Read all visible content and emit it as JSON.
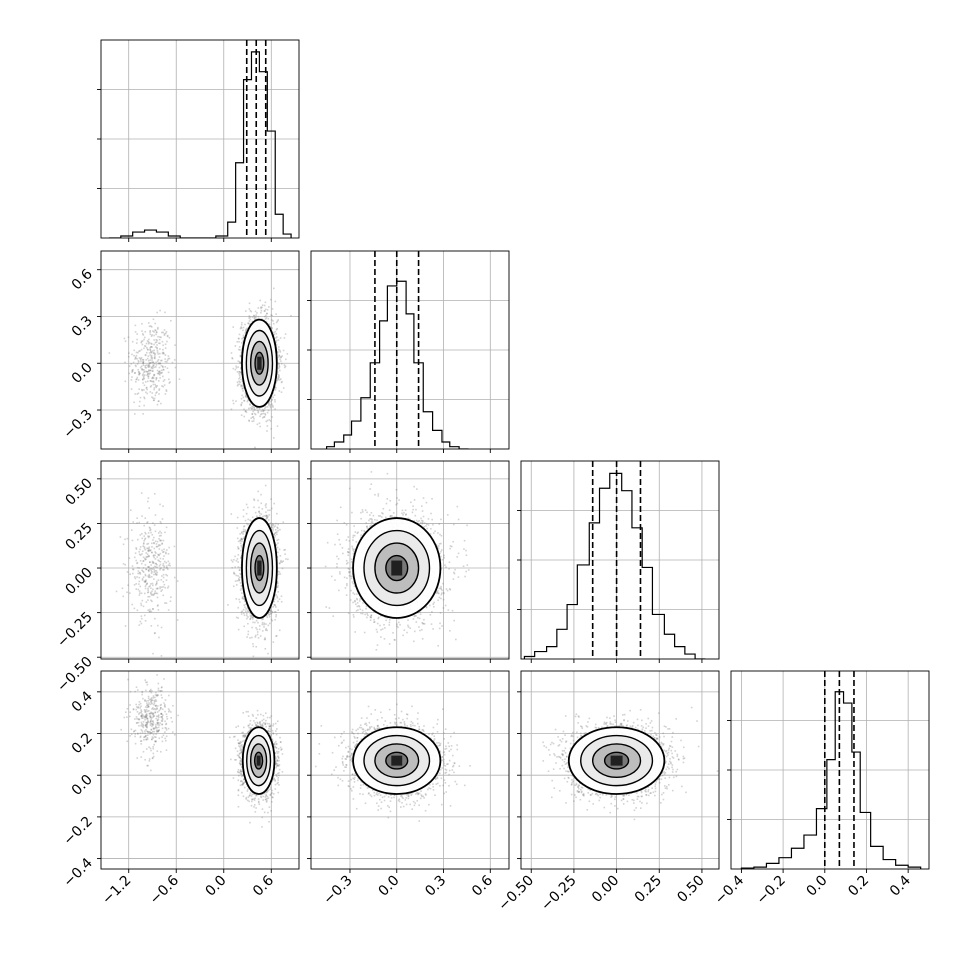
{
  "chart_data": [
    {
      "type": "histogram",
      "panel": "p0-hist",
      "xlim": [
        -1.55,
        0.95
      ],
      "bins": [
        {
          "x0": -1.45,
          "x1": -1.3,
          "count": 0
        },
        {
          "x0": -1.3,
          "x1": -1.15,
          "count": 1
        },
        {
          "x0": -1.15,
          "x1": -1.0,
          "count": 3
        },
        {
          "x0": -1.0,
          "x1": -0.85,
          "count": 4
        },
        {
          "x0": -0.85,
          "x1": -0.7,
          "count": 3
        },
        {
          "x0": -0.7,
          "x1": -0.55,
          "count": 1
        },
        {
          "x0": -0.55,
          "x1": -0.1,
          "count": 0
        },
        {
          "x0": -0.1,
          "x1": 0.05,
          "count": 1
        },
        {
          "x0": 0.05,
          "x1": 0.15,
          "count": 8
        },
        {
          "x0": 0.15,
          "x1": 0.25,
          "count": 38
        },
        {
          "x0": 0.25,
          "x1": 0.35,
          "count": 80
        },
        {
          "x0": 0.35,
          "x1": 0.45,
          "count": 94
        },
        {
          "x0": 0.45,
          "x1": 0.55,
          "count": 84
        },
        {
          "x0": 0.55,
          "x1": 0.65,
          "count": 54
        },
        {
          "x0": 0.65,
          "x1": 0.75,
          "count": 12
        },
        {
          "x0": 0.75,
          "x1": 0.85,
          "count": 2
        }
      ],
      "ymax": 100,
      "quantiles": [
        0.29,
        0.41,
        0.53
      ]
    },
    {
      "type": "histogram",
      "panel": "p1-hist",
      "xlim": [
        -0.55,
        0.72
      ],
      "bins": [
        {
          "x0": -0.45,
          "x1": -0.4,
          "count": 1
        },
        {
          "x0": -0.4,
          "x1": -0.34,
          "count": 3
        },
        {
          "x0": -0.34,
          "x1": -0.29,
          "count": 6
        },
        {
          "x0": -0.29,
          "x1": -0.23,
          "count": 12
        },
        {
          "x0": -0.23,
          "x1": -0.17,
          "count": 22
        },
        {
          "x0": -0.17,
          "x1": -0.11,
          "count": 37
        },
        {
          "x0": -0.11,
          "x1": -0.06,
          "count": 55
        },
        {
          "x0": -0.06,
          "x1": 0.0,
          "count": 70
        },
        {
          "x0": 0.0,
          "x1": 0.06,
          "count": 72
        },
        {
          "x0": 0.06,
          "x1": 0.11,
          "count": 58
        },
        {
          "x0": 0.11,
          "x1": 0.17,
          "count": 37
        },
        {
          "x0": 0.17,
          "x1": 0.23,
          "count": 16
        },
        {
          "x0": 0.23,
          "x1": 0.29,
          "count": 8
        },
        {
          "x0": 0.29,
          "x1": 0.34,
          "count": 3
        },
        {
          "x0": 0.34,
          "x1": 0.4,
          "count": 1
        },
        {
          "x0": 0.4,
          "x1": 0.46,
          "count": 0
        }
      ],
      "ymax": 85,
      "quantiles": [
        -0.14,
        0.0,
        0.14
      ]
    },
    {
      "type": "histogram",
      "panel": "p2-hist",
      "xlim": [
        -0.56,
        0.6
      ],
      "bins": [
        {
          "x0": -0.54,
          "x1": -0.48,
          "count": 1
        },
        {
          "x0": -0.48,
          "x1": -0.41,
          "count": 3
        },
        {
          "x0": -0.41,
          "x1": -0.35,
          "count": 5
        },
        {
          "x0": -0.35,
          "x1": -0.29,
          "count": 12
        },
        {
          "x0": -0.29,
          "x1": -0.23,
          "count": 22
        },
        {
          "x0": -0.23,
          "x1": -0.16,
          "count": 38
        },
        {
          "x0": -0.16,
          "x1": -0.1,
          "count": 55
        },
        {
          "x0": -0.1,
          "x1": -0.04,
          "count": 69
        },
        {
          "x0": -0.04,
          "x1": 0.03,
          "count": 75
        },
        {
          "x0": 0.03,
          "x1": 0.09,
          "count": 68
        },
        {
          "x0": 0.09,
          "x1": 0.15,
          "count": 53
        },
        {
          "x0": 0.15,
          "x1": 0.21,
          "count": 37
        },
        {
          "x0": 0.21,
          "x1": 0.28,
          "count": 18
        },
        {
          "x0": 0.28,
          "x1": 0.34,
          "count": 10
        },
        {
          "x0": 0.34,
          "x1": 0.4,
          "count": 5
        },
        {
          "x0": 0.4,
          "x1": 0.46,
          "count": 2
        },
        {
          "x0": 0.46,
          "x1": 0.52,
          "count": 0
        }
      ],
      "ymax": 80,
      "quantiles": [
        -0.14,
        0.0,
        0.14
      ]
    },
    {
      "type": "histogram",
      "panel": "p3-hist",
      "xlim": [
        -0.45,
        0.5
      ],
      "bins": [
        {
          "x0": -0.4,
          "x1": -0.34,
          "count": 0.5
        },
        {
          "x0": -0.34,
          "x1": -0.28,
          "count": 1
        },
        {
          "x0": -0.28,
          "x1": -0.22,
          "count": 3
        },
        {
          "x0": -0.22,
          "x1": -0.16,
          "count": 6
        },
        {
          "x0": -0.16,
          "x1": -0.1,
          "count": 11
        },
        {
          "x0": -0.1,
          "x1": -0.04,
          "count": 18
        },
        {
          "x0": -0.04,
          "x1": 0.01,
          "count": 32
        },
        {
          "x0": 0.01,
          "x1": 0.05,
          "count": 58
        },
        {
          "x0": 0.05,
          "x1": 0.09,
          "count": 94
        },
        {
          "x0": 0.09,
          "x1": 0.13,
          "count": 88
        },
        {
          "x0": 0.13,
          "x1": 0.17,
          "count": 62
        },
        {
          "x0": 0.17,
          "x1": 0.22,
          "count": 30
        },
        {
          "x0": 0.22,
          "x1": 0.28,
          "count": 12
        },
        {
          "x0": 0.28,
          "x1": 0.34,
          "count": 5
        },
        {
          "x0": 0.34,
          "x1": 0.4,
          "count": 2
        },
        {
          "x0": 0.4,
          "x1": 0.46,
          "count": 1
        }
      ],
      "ymax": 105,
      "quantiles": [
        0.0,
        0.07,
        0.14
      ]
    },
    {
      "type": "scatter",
      "panel": "p1-vs-p0",
      "xlim": [
        -1.55,
        0.95
      ],
      "ylim": [
        -0.55,
        0.72
      ],
      "clusters": [
        {
          "mx": -0.92,
          "my": 0.0,
          "sx": 0.13,
          "sy": 0.14,
          "n": 380
        },
        {
          "mx": 0.45,
          "my": 0.0,
          "sx": 0.11,
          "sy": 0.14,
          "n": 2600
        }
      ],
      "contour_center": [
        0.45,
        0.0
      ],
      "contour_sigma": [
        0.11,
        0.14
      ]
    },
    {
      "type": "scatter",
      "panel": "p2-vs-p0",
      "xlim": [
        -1.55,
        0.95
      ],
      "ylim": [
        -0.51,
        0.6
      ],
      "clusters": [
        {
          "mx": -0.92,
          "my": 0.0,
          "sx": 0.13,
          "sy": 0.14,
          "n": 380
        },
        {
          "mx": 0.45,
          "my": 0.0,
          "sx": 0.11,
          "sy": 0.14,
          "n": 2600
        }
      ],
      "contour_center": [
        0.45,
        0.0
      ],
      "contour_sigma": [
        0.11,
        0.14
      ]
    },
    {
      "type": "scatter",
      "panel": "p3-vs-p0",
      "xlim": [
        -1.55,
        0.95
      ],
      "ylim": [
        -0.45,
        0.5
      ],
      "clusters": [
        {
          "mx": -0.92,
          "my": 0.27,
          "sx": 0.12,
          "sy": 0.08,
          "n": 380
        },
        {
          "mx": 0.44,
          "my": 0.07,
          "sx": 0.1,
          "sy": 0.08,
          "n": 2600
        }
      ],
      "contour_center": [
        0.44,
        0.07
      ],
      "contour_sigma": [
        0.1,
        0.08
      ]
    },
    {
      "type": "scatter",
      "panel": "p2-vs-p1",
      "xlim": [
        -0.55,
        0.72
      ],
      "ylim": [
        -0.51,
        0.6
      ],
      "clusters": [
        {
          "mx": 0.0,
          "my": 0.0,
          "sx": 0.14,
          "sy": 0.14,
          "n": 3000
        }
      ],
      "contour_center": [
        0.0,
        0.0
      ],
      "contour_sigma": [
        0.14,
        0.14
      ]
    },
    {
      "type": "scatter",
      "panel": "p3-vs-p1",
      "xlim": [
        -0.55,
        0.72
      ],
      "ylim": [
        -0.45,
        0.5
      ],
      "clusters": [
        {
          "mx": 0.0,
          "my": 0.07,
          "sx": 0.14,
          "sy": 0.08,
          "n": 3000
        }
      ],
      "contour_center": [
        0.0,
        0.07
      ],
      "contour_sigma": [
        0.14,
        0.08
      ]
    },
    {
      "type": "scatter",
      "panel": "p3-vs-p2",
      "xlim": [
        -0.56,
        0.6
      ],
      "ylim": [
        -0.45,
        0.5
      ],
      "clusters": [
        {
          "mx": 0.0,
          "my": 0.07,
          "sx": 0.14,
          "sy": 0.08,
          "n": 3000
        }
      ],
      "contour_center": [
        0.0,
        0.07
      ],
      "contour_sigma": [
        0.14,
        0.08
      ]
    }
  ],
  "axes": {
    "p0_ticks": [
      "−1.2",
      "−0.6",
      "0.0",
      "0.6"
    ],
    "p0_tick_values": [
      -1.2,
      -0.6,
      0.0,
      0.6
    ],
    "p1_ticks": [
      "−0.3",
      "0.0",
      "0.3",
      "0.6"
    ],
    "p1_tick_values": [
      -0.3,
      0.0,
      0.3,
      0.6
    ],
    "p2_ticks": [
      "−0.50",
      "−0.25",
      "0.00",
      "0.25",
      "0.50"
    ],
    "p2_tick_values": [
      -0.5,
      -0.25,
      0.0,
      0.25,
      0.5
    ],
    "p3_ticks": [
      "−0.4",
      "−0.2",
      "0.0",
      "0.2",
      "0.4"
    ],
    "p3_tick_values": [
      -0.4,
      -0.2,
      0.0,
      0.2,
      0.4
    ],
    "grid": true,
    "line_color": "#000000",
    "grid_color": "#b0b0b0",
    "scatter_color": "#808080"
  }
}
